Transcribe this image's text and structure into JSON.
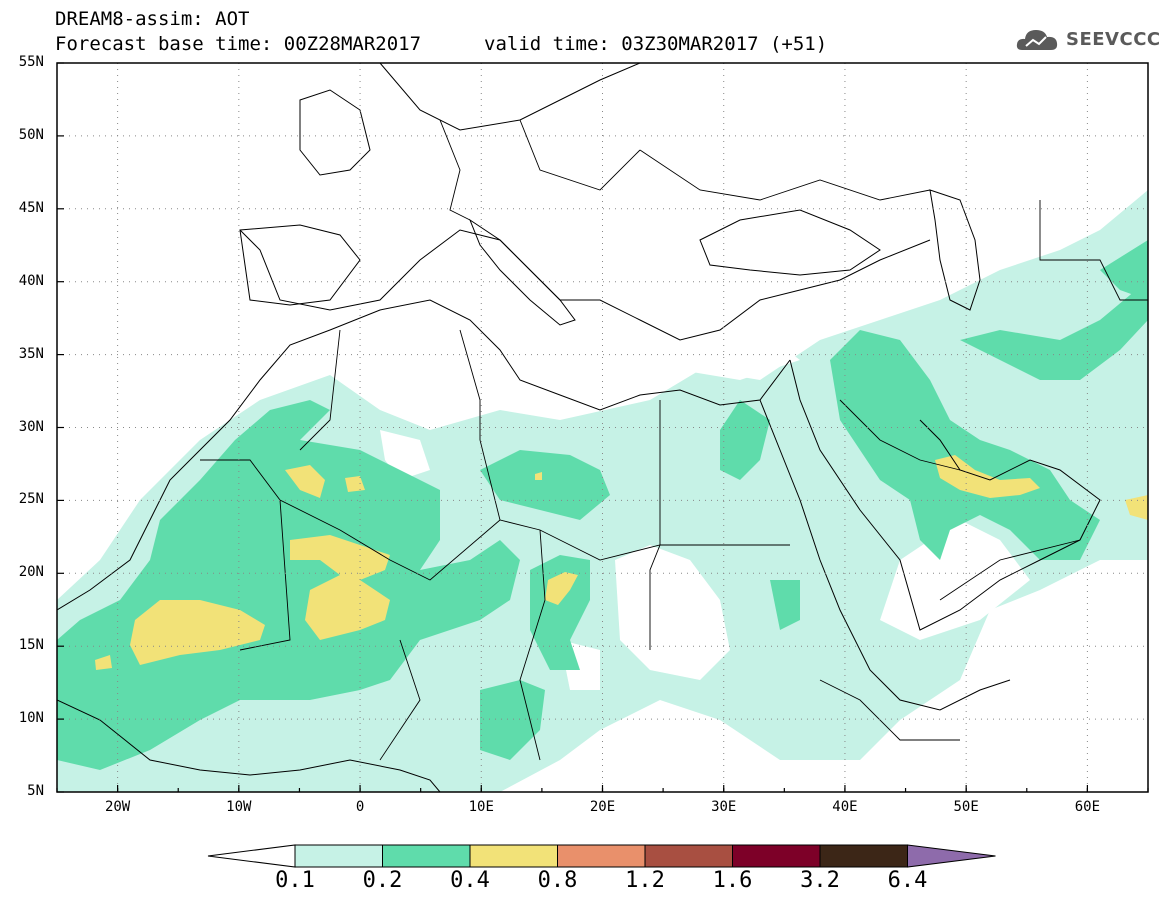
{
  "header": {
    "title": "DREAM8-assim: AOT",
    "base_time": "Forecast base time: 00Z28MAR2017",
    "valid_time": "valid time: 03Z30MAR2017 (+51)",
    "logo_text": "SEEVCCC"
  },
  "axes": {
    "lat_labels": [
      "55N",
      "50N",
      "45N",
      "40N",
      "35N",
      "30N",
      "25N",
      "20N",
      "15N",
      "10N",
      "5N"
    ],
    "lon_labels": [
      "20W",
      "10W",
      "0",
      "10E",
      "20E",
      "30E",
      "40E",
      "50E",
      "60E"
    ]
  },
  "colorbar": {
    "labels": [
      "0.1",
      "0.2",
      "0.4",
      "0.8",
      "1.2",
      "1.6",
      "3.2",
      "6.4"
    ],
    "colors": [
      "#ffffff",
      "#c6f2e6",
      "#5fdcab",
      "#f2e278",
      "#e9906b",
      "#a84f41",
      "#7d0028",
      "#3c2617",
      "#8e6bab"
    ]
  },
  "map_data": {
    "field": "Aerosol Optical Thickness (AOT)",
    "extent": {
      "lon": [
        -25,
        65
      ],
      "lat": [
        5,
        55
      ]
    },
    "notable_regions": [
      {
        "name": "West Sahara / Mauritania max",
        "level": "0.4-0.8"
      },
      {
        "name": "Mali max",
        "level": "0.4-0.8"
      },
      {
        "name": "Chad small max",
        "level": "0.4-0.8"
      },
      {
        "name": "Persian Gulf max",
        "level": "0.4-0.8"
      }
    ]
  }
}
